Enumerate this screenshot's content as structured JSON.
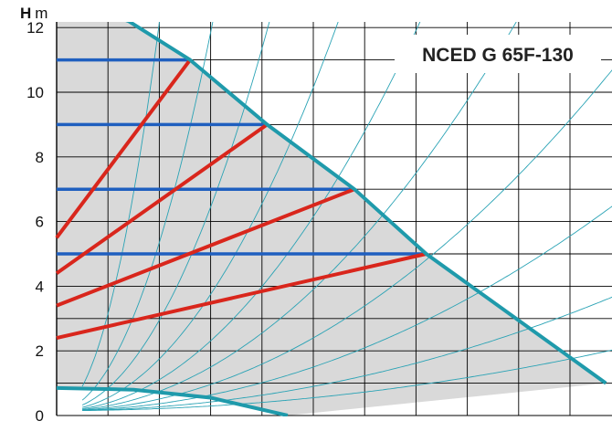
{
  "chart_data": {
    "type": "line",
    "title": "NCED G 65F-130",
    "ylabel_bold": "H",
    "ylabel_unit": "m",
    "xlabel": "",
    "ylim": [
      0,
      12.6
    ],
    "xlim": [
      0,
      11
    ],
    "y_ticks": [
      "0",
      "2",
      "4",
      "6",
      "8",
      "10",
      "12"
    ],
    "grid": true,
    "max_curve": [
      [
        0,
        12.6
      ],
      [
        0.7,
        12.6
      ],
      [
        1.4,
        12.2
      ],
      [
        2.6,
        11.0
      ],
      [
        4.1,
        9.0
      ],
      [
        5.8,
        7.0
      ],
      [
        7.2,
        5.0
      ],
      [
        10.7,
        1.0
      ]
    ],
    "min_curve": [
      [
        0,
        0.85
      ],
      [
        1.5,
        0.8
      ],
      [
        3.0,
        0.55
      ],
      [
        4.5,
        0.0
      ]
    ],
    "constant_pressure_levels": [
      {
        "h": 11,
        "x_end": 2.6
      },
      {
        "h": 9,
        "x_end": 4.1
      },
      {
        "h": 7,
        "x_end": 5.8
      },
      {
        "h": 5,
        "x_end": 7.2
      }
    ],
    "proportional_pressure_lines": [
      {
        "h0": 5.5,
        "x_end": 2.6,
        "h_end": 11
      },
      {
        "h0": 4.4,
        "x_end": 4.1,
        "h_end": 9
      },
      {
        "h0": 3.4,
        "x_end": 5.8,
        "h_end": 7
      },
      {
        "h0": 2.4,
        "x_end": 7.2,
        "h_end": 5
      }
    ],
    "system_curves_k": [
      15,
      6.5,
      3.5,
      2.0,
      1.2,
      0.75,
      0.45,
      0.27,
      0.15,
      0.08
    ],
    "colors": {
      "envelope": "#1f9aab",
      "fill": "#d9d9d9",
      "grid": "#000000",
      "constant": "#1f5fbf",
      "proportional": "#d9261c",
      "system": "#2aa3b5"
    }
  }
}
